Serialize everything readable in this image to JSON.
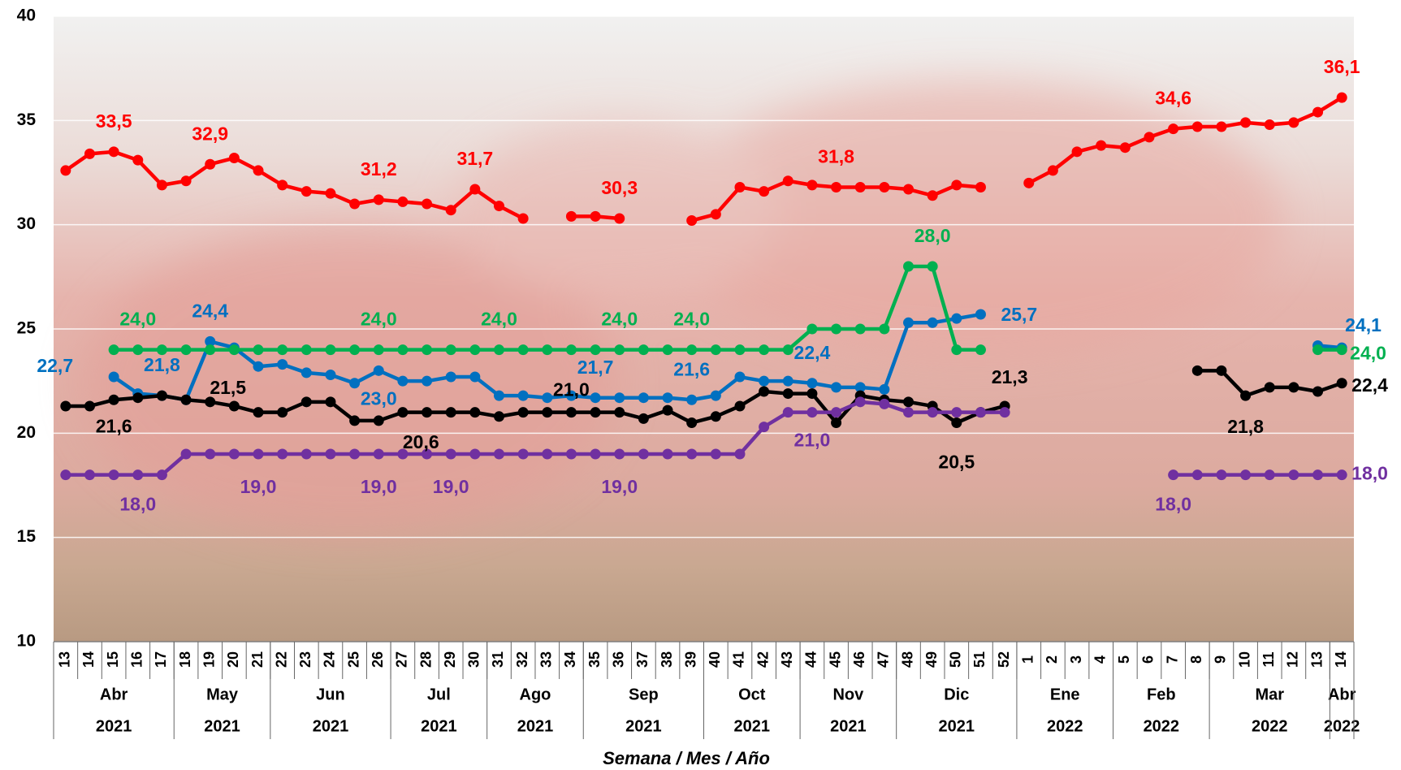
{
  "chart_data": {
    "type": "line",
    "x_axis_title": "Semana / Mes / Año",
    "categories": [
      "13",
      "14",
      "15",
      "16",
      "17",
      "18",
      "19",
      "20",
      "21",
      "22",
      "23",
      "24",
      "25",
      "26",
      "27",
      "28",
      "29",
      "30",
      "31",
      "32",
      "33",
      "34",
      "35",
      "36",
      "37",
      "38",
      "39",
      "40",
      "41",
      "42",
      "43",
      "44",
      "45",
      "46",
      "47",
      "48",
      "49",
      "50",
      "51",
      "52",
      "1",
      "2",
      "3",
      "4",
      "5",
      "6",
      "7",
      "8",
      "9",
      "10",
      "11",
      "12",
      "13",
      "14"
    ],
    "months": [
      "Abr",
      "Abr",
      "Abr",
      "Abr",
      "Abr",
      "May",
      "May",
      "May",
      "May",
      "Jun",
      "Jun",
      "Jun",
      "Jun",
      "Jun",
      "Jul",
      "Jul",
      "Jul",
      "Jul",
      "Ago",
      "Ago",
      "Ago",
      "Ago",
      "Sep",
      "Sep",
      "Sep",
      "Sep",
      "Sep",
      "Oct",
      "Oct",
      "Oct",
      "Oct",
      "Nov",
      "Nov",
      "Nov",
      "Nov",
      "Dic",
      "Dic",
      "Dic",
      "Dic",
      "Dic",
      "Ene",
      "Ene",
      "Ene",
      "Ene",
      "Feb",
      "Feb",
      "Feb",
      "Feb",
      "Mar",
      "Mar",
      "Mar",
      "Mar",
      "Mar",
      "Abr"
    ],
    "years": [
      "2021",
      "2021",
      "2021",
      "2021",
      "2021",
      "2021",
      "2021",
      "2021",
      "2021",
      "2021",
      "2021",
      "2021",
      "2021",
      "2021",
      "2021",
      "2021",
      "2021",
      "2021",
      "2021",
      "2021",
      "2021",
      "2021",
      "2021",
      "2021",
      "2021",
      "2021",
      "2021",
      "2021",
      "2021",
      "2021",
      "2021",
      "2021",
      "2021",
      "2021",
      "2021",
      "2021",
      "2021",
      "2021",
      "2021",
      "2021",
      "2022",
      "2022",
      "2022",
      "2022",
      "2022",
      "2022",
      "2022",
      "2022",
      "2022",
      "2022",
      "2022",
      "2022",
      "2022",
      "2022"
    ],
    "ylim": [
      10,
      40
    ],
    "yticks": [
      10,
      15,
      20,
      25,
      30,
      35,
      40
    ],
    "grid": true,
    "series": [
      {
        "color": "#ff0000",
        "values": [
          32.6,
          33.4,
          33.5,
          33.1,
          31.9,
          32.1,
          32.9,
          33.2,
          32.6,
          31.9,
          31.6,
          31.5,
          31.0,
          31.2,
          31.1,
          31.0,
          30.7,
          31.7,
          30.9,
          30.3,
          null,
          30.4,
          30.4,
          30.3,
          null,
          null,
          30.2,
          30.5,
          31.8,
          31.6,
          32.1,
          31.9,
          31.8,
          31.8,
          31.8,
          31.7,
          31.4,
          31.9,
          31.8,
          null,
          32.0,
          32.6,
          33.5,
          33.8,
          33.7,
          34.2,
          34.6,
          34.7,
          34.7,
          34.9,
          34.8,
          34.9,
          35.4,
          36.1
        ],
        "value_labels": [
          null,
          null,
          "33,5",
          null,
          null,
          null,
          "32,9",
          null,
          null,
          null,
          null,
          null,
          null,
          "31,2",
          null,
          null,
          null,
          "31,7",
          null,
          null,
          null,
          null,
          null,
          "30,3",
          null,
          null,
          null,
          null,
          null,
          null,
          null,
          null,
          "31,8",
          null,
          null,
          null,
          null,
          null,
          null,
          null,
          null,
          null,
          null,
          null,
          null,
          null,
          "34,6",
          null,
          null,
          null,
          null,
          null,
          null,
          "36,1"
        ]
      },
      {
        "color": "#0070c0",
        "values": [
          null,
          null,
          22.7,
          21.9,
          21.8,
          21.6,
          24.4,
          24.1,
          23.2,
          23.3,
          22.9,
          22.8,
          22.4,
          23.0,
          22.5,
          22.5,
          22.7,
          22.7,
          21.8,
          21.8,
          21.7,
          21.8,
          21.7,
          21.7,
          21.7,
          21.7,
          21.6,
          21.8,
          22.7,
          22.5,
          22.5,
          22.4,
          22.2,
          22.2,
          22.1,
          25.3,
          25.3,
          25.5,
          25.7,
          null,
          null,
          null,
          null,
          null,
          null,
          null,
          null,
          null,
          null,
          null,
          null,
          null,
          24.2,
          24.1
        ],
        "value_labels": [
          null,
          null,
          "22,7",
          null,
          "21,8",
          null,
          "24,4",
          null,
          null,
          null,
          null,
          null,
          null,
          "23,0",
          null,
          null,
          null,
          null,
          null,
          null,
          null,
          null,
          "21,7",
          null,
          null,
          null,
          "21,6",
          null,
          null,
          null,
          null,
          "22,4",
          null,
          null,
          null,
          null,
          null,
          null,
          "25,7",
          null,
          null,
          null,
          null,
          null,
          null,
          null,
          null,
          null,
          null,
          null,
          null,
          null,
          null,
          "24,1"
        ]
      },
      {
        "color": "#00b050",
        "values": [
          null,
          null,
          24.0,
          24.0,
          24.0,
          24.0,
          24.0,
          24.0,
          24.0,
          24.0,
          24.0,
          24.0,
          24.0,
          24.0,
          24.0,
          24.0,
          24.0,
          24.0,
          24.0,
          24.0,
          24.0,
          24.0,
          24.0,
          24.0,
          24.0,
          24.0,
          24.0,
          24.0,
          24.0,
          24.0,
          24.0,
          25.0,
          25.0,
          25.0,
          25.0,
          28.0,
          28.0,
          24.0,
          24.0,
          null,
          null,
          null,
          null,
          null,
          null,
          null,
          null,
          null,
          null,
          null,
          null,
          null,
          24.0,
          24.0
        ],
        "value_labels": [
          null,
          null,
          null,
          "24,0",
          null,
          null,
          null,
          null,
          null,
          null,
          null,
          null,
          null,
          "24,0",
          null,
          null,
          null,
          null,
          "24,0",
          null,
          null,
          null,
          null,
          "24,0",
          null,
          null,
          "24,0",
          null,
          null,
          null,
          null,
          null,
          null,
          null,
          null,
          null,
          "28,0",
          null,
          null,
          null,
          null,
          null,
          null,
          null,
          null,
          null,
          null,
          null,
          null,
          null,
          null,
          null,
          null,
          "24,0"
        ]
      },
      {
        "color": "#000000",
        "values": [
          21.3,
          21.3,
          21.6,
          21.7,
          21.8,
          21.6,
          21.5,
          21.3,
          21.0,
          21.0,
          21.5,
          21.5,
          20.6,
          20.6,
          21.0,
          21.0,
          21.0,
          21.0,
          20.8,
          21.0,
          21.0,
          21.0,
          21.0,
          21.0,
          20.7,
          21.1,
          20.5,
          20.8,
          21.3,
          22.0,
          21.9,
          21.9,
          20.5,
          21.8,
          21.6,
          21.5,
          21.3,
          20.5,
          21.0,
          21.3,
          null,
          null,
          null,
          null,
          null,
          null,
          null,
          23.0,
          23.0,
          21.8,
          22.2,
          22.2,
          22.0,
          22.4
        ],
        "value_labels": [
          null,
          null,
          "21,6",
          null,
          null,
          null,
          "21,5",
          null,
          null,
          null,
          null,
          null,
          null,
          "20,6",
          null,
          null,
          null,
          null,
          null,
          null,
          null,
          "21,0",
          null,
          null,
          null,
          null,
          null,
          null,
          null,
          null,
          null,
          null,
          null,
          null,
          null,
          null,
          null,
          "20,5",
          null,
          "21,3",
          null,
          null,
          null,
          null,
          null,
          null,
          null,
          null,
          null,
          "21,8",
          null,
          null,
          null,
          "22,4"
        ]
      },
      {
        "color": "#7030a0",
        "values": [
          18.0,
          18.0,
          18.0,
          18.0,
          18.0,
          19.0,
          19.0,
          19.0,
          19.0,
          19.0,
          19.0,
          19.0,
          19.0,
          19.0,
          19.0,
          19.0,
          19.0,
          19.0,
          19.0,
          19.0,
          19.0,
          19.0,
          19.0,
          19.0,
          19.0,
          19.0,
          19.0,
          19.0,
          19.0,
          20.3,
          21.0,
          21.0,
          21.0,
          21.5,
          21.4,
          21.0,
          21.0,
          21.0,
          21.0,
          21.0,
          null,
          null,
          null,
          null,
          null,
          null,
          18.0,
          18.0,
          18.0,
          18.0,
          18.0,
          18.0,
          18.0,
          18.0
        ],
        "value_labels": [
          null,
          null,
          null,
          "18,0",
          null,
          null,
          null,
          null,
          "19,0",
          null,
          null,
          null,
          null,
          "19,0",
          null,
          null,
          "19,0",
          null,
          null,
          null,
          null,
          null,
          null,
          "19,0",
          null,
          null,
          null,
          null,
          null,
          null,
          null,
          "21,0",
          null,
          null,
          null,
          null,
          null,
          null,
          null,
          null,
          null,
          null,
          null,
          null,
          null,
          null,
          "18,0",
          null,
          null,
          null,
          null,
          null,
          null,
          "18,0"
        ]
      }
    ]
  }
}
